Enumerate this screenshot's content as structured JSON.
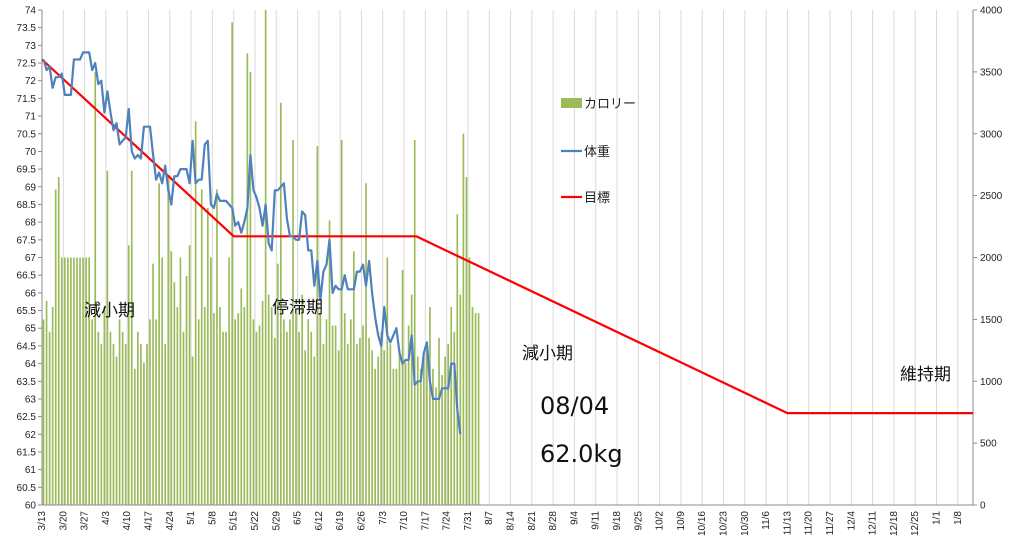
{
  "chart_data": {
    "type": "bar+line",
    "title": "",
    "x_ticks": [
      "3/13",
      "3/20",
      "3/27",
      "4/3",
      "4/10",
      "4/17",
      "4/24",
      "5/1",
      "5/8",
      "5/15",
      "5/22",
      "5/29",
      "6/5",
      "6/12",
      "6/19",
      "6/26",
      "7/3",
      "7/10",
      "7/17",
      "7/24",
      "7/31",
      "8/7",
      "8/14",
      "8/21",
      "8/28",
      "9/4",
      "9/11",
      "9/18",
      "9/25",
      "10/2",
      "10/9",
      "10/16",
      "10/23",
      "10/30",
      "11/6",
      "11/13",
      "11/20",
      "11/27",
      "12/4",
      "12/11",
      "12/18",
      "12/25",
      "1/1",
      "1/8"
    ],
    "y_left_ticks": [
      "60",
      "60.5",
      "61",
      "61.5",
      "62",
      "62.5",
      "63",
      "63.5",
      "64",
      "64.5",
      "65",
      "65.5",
      "66",
      "66.5",
      "67",
      "67.5",
      "68",
      "68.5",
      "69",
      "69.5",
      "70",
      "70.5",
      "71",
      "71.5",
      "72",
      "72.5",
      "73",
      "73.5",
      "74"
    ],
    "y_right_ticks": [
      "0",
      "500",
      "1000",
      "1500",
      "2000",
      "2500",
      "3000",
      "3500",
      "4000"
    ],
    "y_left_range": [
      60,
      74
    ],
    "y_right_range": [
      0,
      4000
    ],
    "x_range_days": [
      0,
      306
    ],
    "grid": "vertical",
    "legend_position": "right",
    "legend": [
      {
        "name": "カロリー",
        "color": "#9bbb59",
        "kind": "bar"
      },
      {
        "name": "体重",
        "color": "#4f81bd",
        "kind": "line"
      },
      {
        "name": "目標",
        "color": "#ff0000",
        "kind": "line"
      }
    ],
    "annotations": [
      {
        "text": "減小期",
        "size": 17
      },
      {
        "text": "停滞期",
        "size": 17
      },
      {
        "text": "減小期",
        "size": 17
      },
      {
        "text": "08/04",
        "size": 24
      },
      {
        "text": "62.0kg",
        "size": 24
      },
      {
        "text": "維持期",
        "size": 17
      }
    ],
    "series": [
      {
        "name": "目標",
        "axis": "left",
        "color": "#ff0000",
        "x": [
          "3/13",
          "5/15",
          "7/14",
          "11/13",
          "1/13"
        ],
        "values": [
          72.6,
          67.6,
          67.6,
          62.6,
          62.6
        ]
      },
      {
        "name": "体重",
        "axis": "left",
        "color": "#4f81bd",
        "x_start": "3/13",
        "values": [
          72.6,
          72.3,
          72.4,
          71.8,
          72.1,
          72.1,
          72.2,
          71.6,
          71.6,
          71.6,
          72.6,
          72.6,
          72.6,
          72.8,
          72.8,
          72.8,
          72.3,
          72.5,
          71.9,
          72.0,
          71.1,
          71.7,
          71.1,
          70.6,
          70.8,
          70.2,
          70.3,
          70.4,
          71.2,
          70.0,
          69.8,
          69.9,
          69.8,
          70.7,
          70.7,
          70.7,
          69.9,
          69.2,
          69.4,
          69.1,
          69.6,
          68.9,
          68.5,
          69.3,
          69.3,
          69.5,
          69.5,
          69.5,
          69.1,
          70.3,
          69.1,
          69.2,
          69.2,
          70.2,
          70.3,
          68.5,
          68.4,
          68.8,
          68.6,
          68.6,
          68.6,
          68.5,
          68.4,
          67.9,
          68.0,
          67.7,
          68.0,
          68.4,
          69.9,
          68.9,
          68.7,
          68.4,
          67.9,
          68.5,
          67.4,
          67.2,
          68.9,
          68.9,
          69.0,
          69.1,
          68.1,
          67.6,
          67.6,
          67.5,
          67.5,
          68.3,
          68.2,
          67.2,
          67.2,
          66.2,
          66.9,
          65.8,
          66.6,
          66.8,
          67.5,
          66.0,
          66.2,
          66.1,
          66.1,
          66.5,
          66.1,
          66.1,
          66.1,
          66.6,
          66.6,
          66.8,
          66.2,
          66.9,
          66.0,
          65.3,
          64.8,
          64.5,
          65.6,
          64.8,
          64.6,
          64.8,
          65.0,
          64.3,
          64.0,
          64.1,
          64.1,
          64.8,
          63.4,
          63.5,
          63.5,
          64.3,
          64.6,
          63.5,
          63.0,
          63.0,
          63.0,
          63.3,
          63.3,
          63.3,
          64.0,
          64.0,
          62.7,
          62.0
        ]
      },
      {
        "name": "カロリー",
        "axis": "right",
        "color": "#9bbb59",
        "x_start": "3/13",
        "values": [
          1500,
          1650,
          1400,
          1600,
          2550,
          2650,
          2000,
          2000,
          2000,
          2000,
          2000,
          2000,
          2000,
          2000,
          2000,
          2000,
          1500,
          3500,
          1400,
          1300,
          1600,
          2700,
          1400,
          1300,
          1200,
          1500,
          1400,
          1300,
          2100,
          2700,
          1100,
          1400,
          1300,
          1150,
          1300,
          1500,
          1950,
          1500,
          2600,
          2000,
          1300,
          2650,
          2050,
          1800,
          1600,
          2000,
          1400,
          1850,
          2100,
          1200,
          3100,
          1500,
          2550,
          1600,
          2400,
          2000,
          1550,
          2550,
          1600,
          1400,
          1400,
          2000,
          3900,
          1500,
          1550,
          1750,
          1600,
          3650,
          3500,
          1500,
          1400,
          1450,
          1650,
          4000,
          1700,
          1600,
          1350,
          1950,
          3250,
          1500,
          1400,
          1500,
          2950,
          1550,
          1400,
          1700,
          1250,
          1500,
          1400,
          1200,
          2900,
          1550,
          1300,
          1500,
          2300,
          1450,
          1450,
          1250,
          2950,
          1550,
          1300,
          1500,
          2050,
          1300,
          1350,
          1450,
          2600,
          1350,
          1250,
          1100,
          1200,
          1400,
          1250,
          2000,
          1300,
          1100,
          1100,
          1250,
          1900,
          1150,
          1450,
          1700,
          2950,
          1200,
          1100,
          1200,
          1250,
          1600,
          1100,
          950,
          1350,
          1050,
          1200,
          1300,
          1600,
          1400,
          2350,
          1700,
          3000,
          2650,
          2000,
          1600,
          1550,
          1550
        ]
      }
    ]
  }
}
